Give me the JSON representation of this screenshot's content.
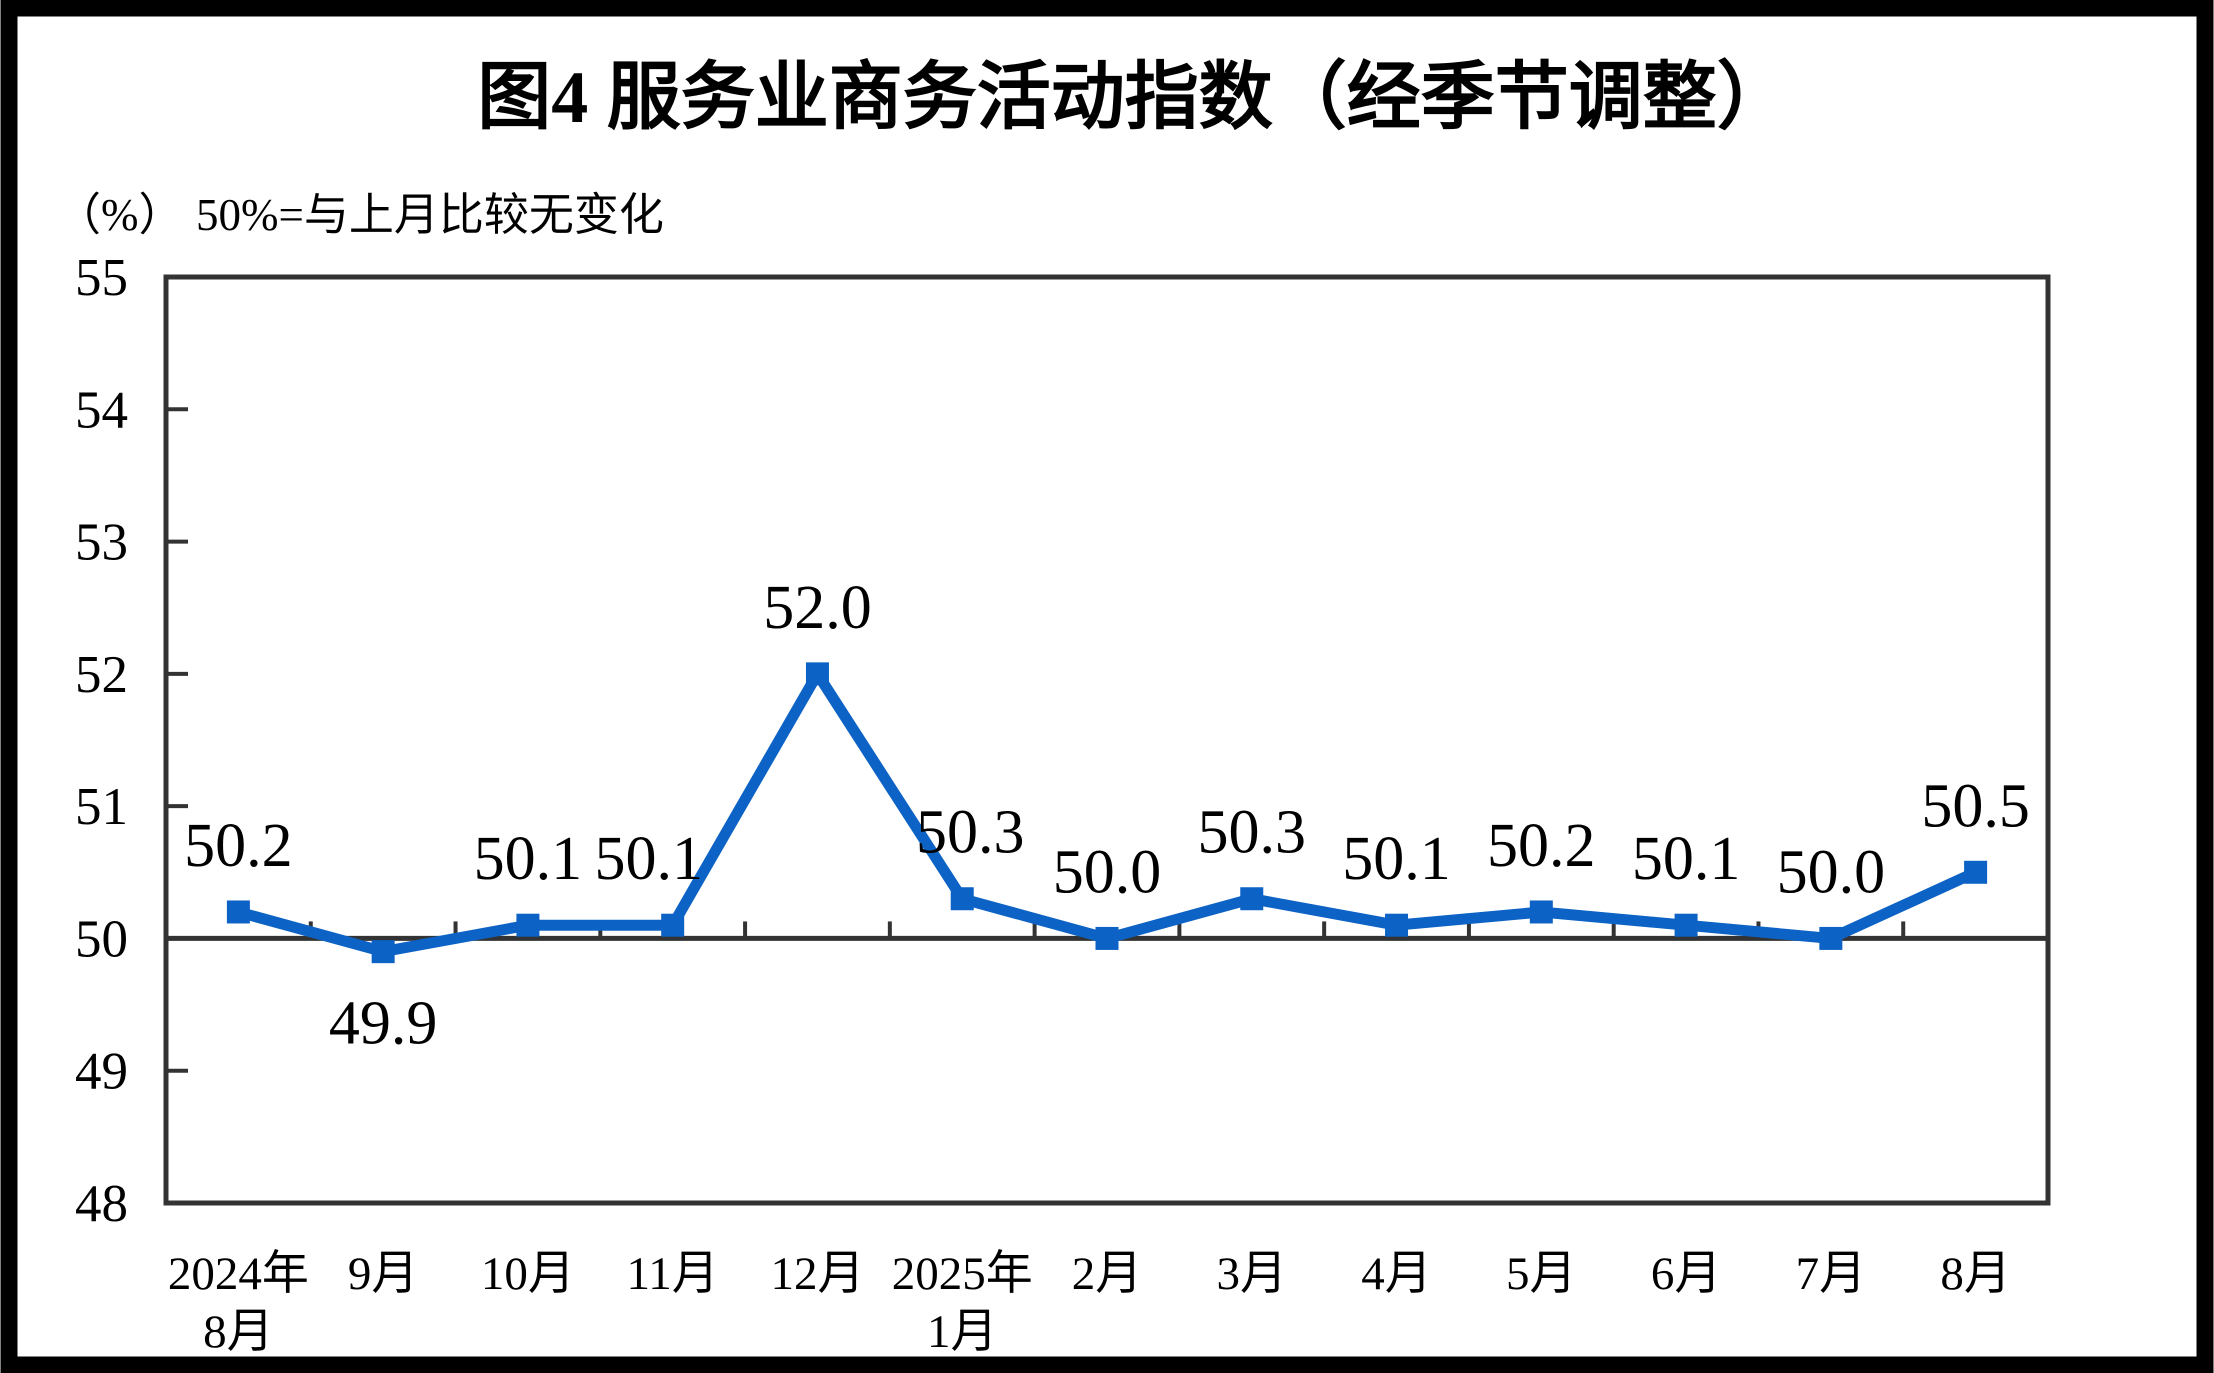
{
  "title": "图4  服务业商务活动指数（经季节调整）",
  "unit_label": "（%）",
  "baseline_note": "50%=与上月比较无变化",
  "colors": {
    "line": "#0d63c5",
    "marker": "#0d63c5",
    "axis": "#333333",
    "label_text": "#000000",
    "outer_border": "#000000",
    "background": "#ffffff"
  },
  "chart_data": {
    "type": "line",
    "title": "图4  服务业商务活动指数（经季节调整）",
    "ylabel": "（%）",
    "annotation": "50%=与上月比较无变化",
    "ylim": [
      48,
      55
    ],
    "y_ticks": [
      48,
      49,
      50,
      51,
      52,
      53,
      54,
      55
    ],
    "baseline_value": 50,
    "grid": "off",
    "legend_position": "none",
    "marker_shape": "square",
    "categories": [
      [
        "2024年",
        "8月"
      ],
      [
        "9月"
      ],
      [
        "10月"
      ],
      [
        "11月"
      ],
      [
        "12月"
      ],
      [
        "2025年",
        "1月"
      ],
      [
        "2月"
      ],
      [
        "3月"
      ],
      [
        "4月"
      ],
      [
        "5月"
      ],
      [
        "6月"
      ],
      [
        "7月"
      ],
      [
        "8月"
      ]
    ],
    "values": [
      50.2,
      49.9,
      50.1,
      50.1,
      52.0,
      50.3,
      50.0,
      50.3,
      50.1,
      50.2,
      50.1,
      50.0,
      50.5
    ],
    "data_labels": [
      "50.2",
      "49.9",
      "50.1",
      "50.1",
      "52.0",
      "50.3",
      "50.0",
      "50.3",
      "50.1",
      "50.2",
      "50.1",
      "50.0",
      "50.5"
    ],
    "label_positions": [
      "above",
      "below",
      "above",
      "above",
      "above",
      "above",
      "above",
      "above",
      "above",
      "above",
      "above",
      "above",
      "above"
    ],
    "label_dx": [
      0,
      0,
      0,
      -24,
      0,
      8,
      0,
      0,
      0,
      0,
      0,
      0,
      0
    ]
  }
}
